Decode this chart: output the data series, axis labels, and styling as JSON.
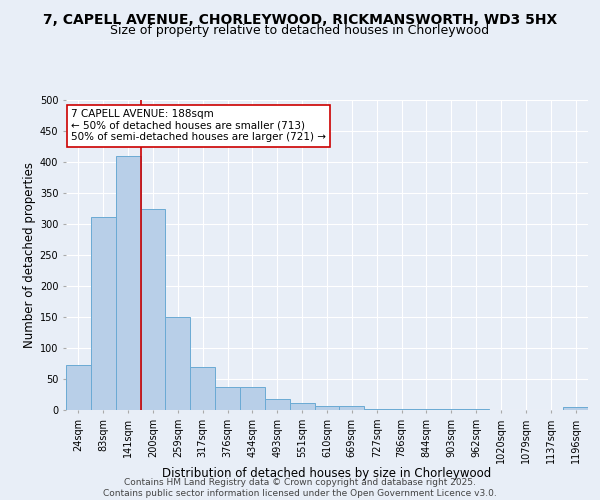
{
  "title": "7, CAPELL AVENUE, CHORLEYWOOD, RICKMANSWORTH, WD3 5HX",
  "subtitle": "Size of property relative to detached houses in Chorleywood",
  "xlabel": "Distribution of detached houses by size in Chorleywood",
  "ylabel": "Number of detached properties",
  "categories": [
    "24sqm",
    "83sqm",
    "141sqm",
    "200sqm",
    "259sqm",
    "317sqm",
    "376sqm",
    "434sqm",
    "493sqm",
    "551sqm",
    "610sqm",
    "669sqm",
    "727sqm",
    "786sqm",
    "844sqm",
    "903sqm",
    "962sqm",
    "1020sqm",
    "1079sqm",
    "1137sqm",
    "1196sqm"
  ],
  "values": [
    72,
    312,
    410,
    325,
    150,
    70,
    37,
    37,
    18,
    11,
    6,
    6,
    2,
    2,
    2,
    2,
    1,
    0,
    0,
    0,
    5
  ],
  "bar_color": "#b8cfe8",
  "bar_edge_color": "#6aaad4",
  "bg_color": "#e8eef7",
  "grid_color": "#ffffff",
  "annotation_text": "7 CAPELL AVENUE: 188sqm\n← 50% of detached houses are smaller (713)\n50% of semi-detached houses are larger (721) →",
  "annotation_box_color": "#ffffff",
  "annotation_border_color": "#cc0000",
  "red_line_x": 2.5,
  "footer": "Contains HM Land Registry data © Crown copyright and database right 2025.\nContains public sector information licensed under the Open Government Licence v3.0.",
  "ylim": [
    0,
    500
  ],
  "yticks": [
    0,
    50,
    100,
    150,
    200,
    250,
    300,
    350,
    400,
    450,
    500
  ],
  "title_fontsize": 10,
  "subtitle_fontsize": 9,
  "xlabel_fontsize": 8.5,
  "ylabel_fontsize": 8.5,
  "tick_fontsize": 7,
  "annot_fontsize": 7.5,
  "footer_fontsize": 6.5
}
